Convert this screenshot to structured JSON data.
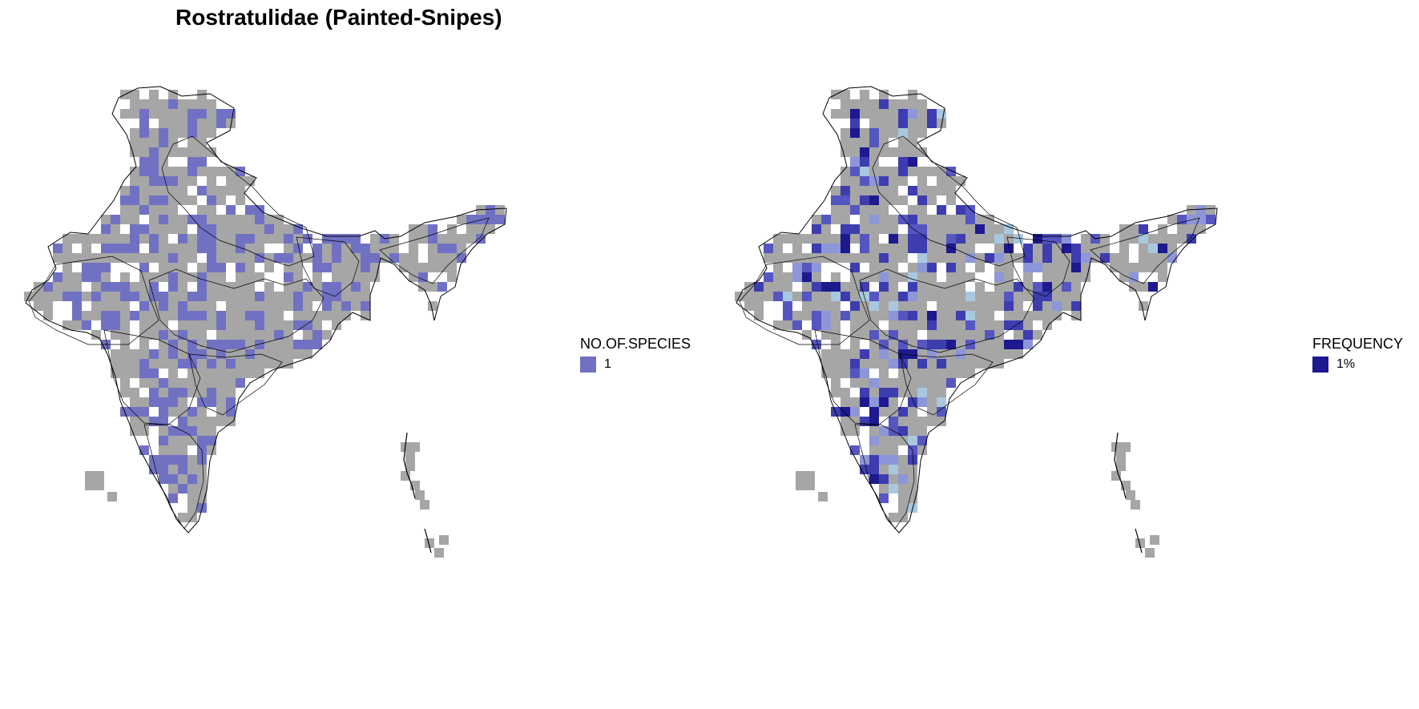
{
  "title": "Rostratulidae (Painted-Snipes)",
  "colors": {
    "survey_gray": "#a6a6a6",
    "species_blue": "#7171c4",
    "freq_levels": [
      "#a8c8e0",
      "#8c96d8",
      "#5656c0",
      "#3d3daf",
      "#1d198f"
    ],
    "border": "#000000"
  },
  "panels": [
    {
      "legend": {
        "title": "NO.OF.SPECIES",
        "items": [
          {
            "label": "1",
            "color": "#7171c4"
          }
        ]
      }
    },
    {
      "legend": {
        "title": "FREQUENCY",
        "items": [
          {
            "label": "1%",
            "color": "#1d198f"
          }
        ]
      }
    }
  ]
}
